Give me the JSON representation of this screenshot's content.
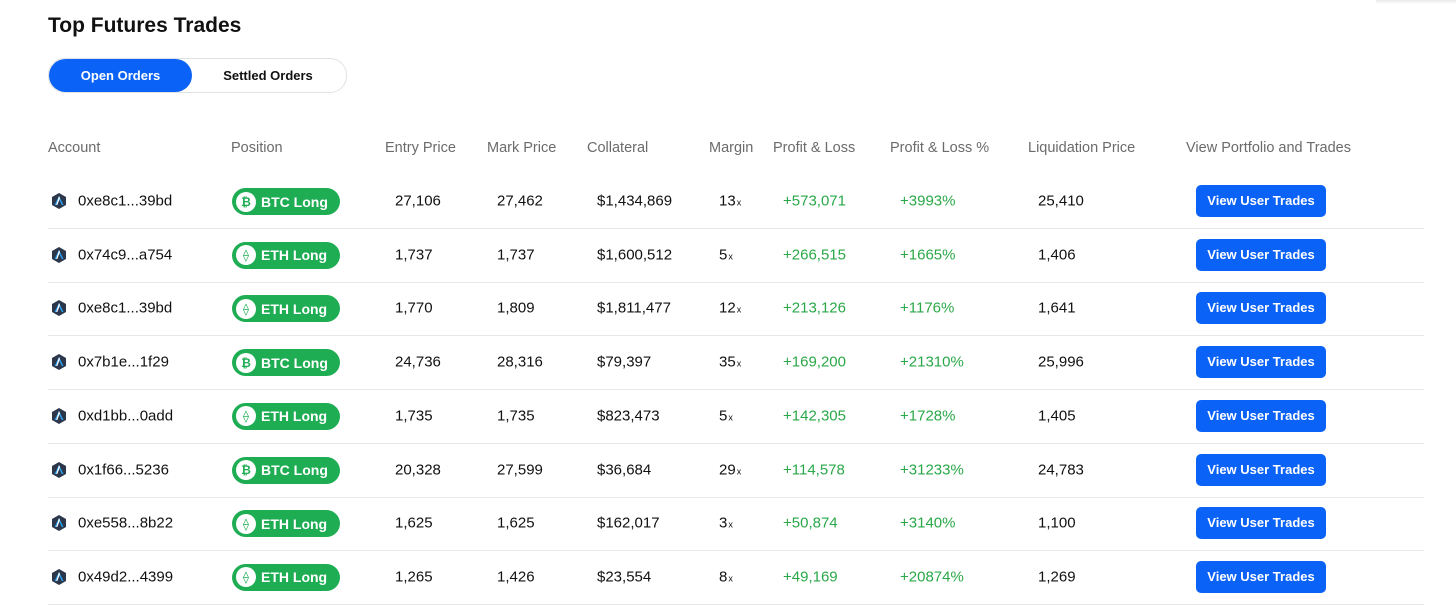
{
  "page": {
    "title": "Top Futures Trades"
  },
  "tabs": {
    "open_label": "Open Orders",
    "settled_label": "Settled Orders",
    "active": "Open Orders"
  },
  "columns": {
    "account": "Account",
    "position": "Position",
    "entry_price": "Entry Price",
    "mark_price": "Mark Price",
    "collateral": "Collateral",
    "margin": "Margin",
    "pnl": "Profit & Loss",
    "pnl_pct": "Profit & Loss %",
    "liquidation": "Liquidation Price",
    "view": "View Portfolio and Trades"
  },
  "colors": {
    "accent": "#0b62f6",
    "long_badge": "#1fad54",
    "profit_text": "#2aa848"
  },
  "rows": [
    {
      "account": "0xe8c1...39bd",
      "coin": "BTC",
      "coin_icon": "bitcoin-icon",
      "position": "BTC Long",
      "entry": "27,106",
      "mark": "27,462",
      "collateral": "$1,434,869",
      "margin": "13",
      "margin_suffix": "x",
      "pnl": "+573,071",
      "pnl_pct": "+3993%",
      "liquidation": "25,410",
      "button": "View User Trades"
    },
    {
      "account": "0x74c9...a754",
      "coin": "ETH",
      "coin_icon": "ethereum-icon",
      "position": "ETH Long",
      "entry": "1,737",
      "mark": "1,737",
      "collateral": "$1,600,512",
      "margin": "5",
      "margin_suffix": "x",
      "pnl": "+266,515",
      "pnl_pct": "+1665%",
      "liquidation": "1,406",
      "button": "View User Trades"
    },
    {
      "account": "0xe8c1...39bd",
      "coin": "ETH",
      "coin_icon": "ethereum-icon",
      "position": "ETH Long",
      "entry": "1,770",
      "mark": "1,809",
      "collateral": "$1,811,477",
      "margin": "12",
      "margin_suffix": "x",
      "pnl": "+213,126",
      "pnl_pct": "+1176%",
      "liquidation": "1,641",
      "button": "View User Trades"
    },
    {
      "account": "0x7b1e...1f29",
      "coin": "BTC",
      "coin_icon": "bitcoin-icon",
      "position": "BTC Long",
      "entry": "24,736",
      "mark": "28,316",
      "collateral": "$79,397",
      "margin": "35",
      "margin_suffix": "x",
      "pnl": "+169,200",
      "pnl_pct": "+21310%",
      "liquidation": "25,996",
      "button": "View User Trades"
    },
    {
      "account": "0xd1bb...0add",
      "coin": "ETH",
      "coin_icon": "ethereum-icon",
      "position": "ETH Long",
      "entry": "1,735",
      "mark": "1,735",
      "collateral": "$823,473",
      "margin": "5",
      "margin_suffix": "x",
      "pnl": "+142,305",
      "pnl_pct": "+1728%",
      "liquidation": "1,405",
      "button": "View User Trades"
    },
    {
      "account": "0x1f66...5236",
      "coin": "BTC",
      "coin_icon": "bitcoin-icon",
      "position": "BTC Long",
      "entry": "20,328",
      "mark": "27,599",
      "collateral": "$36,684",
      "margin": "29",
      "margin_suffix": "x",
      "pnl": "+114,578",
      "pnl_pct": "+31233%",
      "liquidation": "24,783",
      "button": "View User Trades"
    },
    {
      "account": "0xe558...8b22",
      "coin": "ETH",
      "coin_icon": "ethereum-icon",
      "position": "ETH Long",
      "entry": "1,625",
      "mark": "1,625",
      "collateral": "$162,017",
      "margin": "3",
      "margin_suffix": "x",
      "pnl": "+50,874",
      "pnl_pct": "+3140%",
      "liquidation": "1,100",
      "button": "View User Trades"
    },
    {
      "account": "0x49d2...4399",
      "coin": "ETH",
      "coin_icon": "ethereum-icon",
      "position": "ETH Long",
      "entry": "1,265",
      "mark": "1,426",
      "collateral": "$23,554",
      "margin": "8",
      "margin_suffix": "x",
      "pnl": "+49,169",
      "pnl_pct": "+20874%",
      "liquidation": "1,269",
      "button": "View User Trades"
    }
  ]
}
